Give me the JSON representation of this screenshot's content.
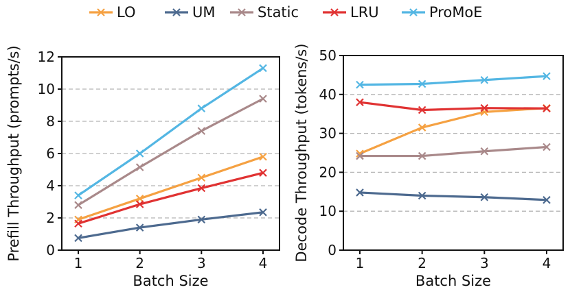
{
  "legend": [
    {
      "name": "LO",
      "color": "#f5a142"
    },
    {
      "name": "UM",
      "color": "#4d6a8f"
    },
    {
      "name": "Static",
      "color": "#a9898a"
    },
    {
      "name": "LRU",
      "color": "#e03232"
    },
    {
      "name": "ProMoE",
      "color": "#53b6e3"
    }
  ],
  "chart_data": [
    {
      "type": "line",
      "title": "",
      "xlabel": "Batch Size",
      "ylabel": "Prefill Throughput (prompts/s)",
      "x": [
        1,
        2,
        3,
        4
      ],
      "xticks": [
        "1",
        "2",
        "3",
        "4"
      ],
      "ylim": [
        0,
        12
      ],
      "yticks": [
        "0",
        "2",
        "4",
        "6",
        "8",
        "10",
        "12"
      ],
      "grid": "horizontal dashed",
      "series": [
        {
          "name": "LO",
          "values": [
            1.9,
            3.2,
            4.5,
            5.8
          ]
        },
        {
          "name": "UM",
          "values": [
            0.75,
            1.4,
            1.9,
            2.35
          ]
        },
        {
          "name": "Static",
          "values": [
            2.8,
            5.15,
            7.4,
            9.4
          ]
        },
        {
          "name": "LRU",
          "values": [
            1.65,
            2.85,
            3.85,
            4.8
          ]
        },
        {
          "name": "ProMoE",
          "values": [
            3.4,
            6.0,
            8.8,
            11.3
          ]
        }
      ]
    },
    {
      "type": "line",
      "title": "",
      "xlabel": "Batch Size",
      "ylabel": "Decode Throughput (tokens/s)",
      "x": [
        1,
        2,
        3,
        4
      ],
      "xticks": [
        "1",
        "2",
        "3",
        "4"
      ],
      "ylim": [
        0,
        50
      ],
      "yticks": [
        "0",
        "10",
        "20",
        "30",
        "40",
        "50"
      ],
      "grid": "horizontal dashed",
      "series": [
        {
          "name": "LO",
          "values": [
            24.8,
            31.5,
            35.5,
            36.5
          ]
        },
        {
          "name": "UM",
          "values": [
            14.8,
            14.0,
            13.6,
            12.9
          ]
        },
        {
          "name": "Static",
          "values": [
            24.2,
            24.2,
            25.4,
            26.5
          ]
        },
        {
          "name": "LRU",
          "values": [
            38.0,
            36.0,
            36.5,
            36.4
          ]
        },
        {
          "name": "ProMoE",
          "values": [
            42.5,
            42.7,
            43.7,
            44.7
          ]
        }
      ]
    }
  ]
}
